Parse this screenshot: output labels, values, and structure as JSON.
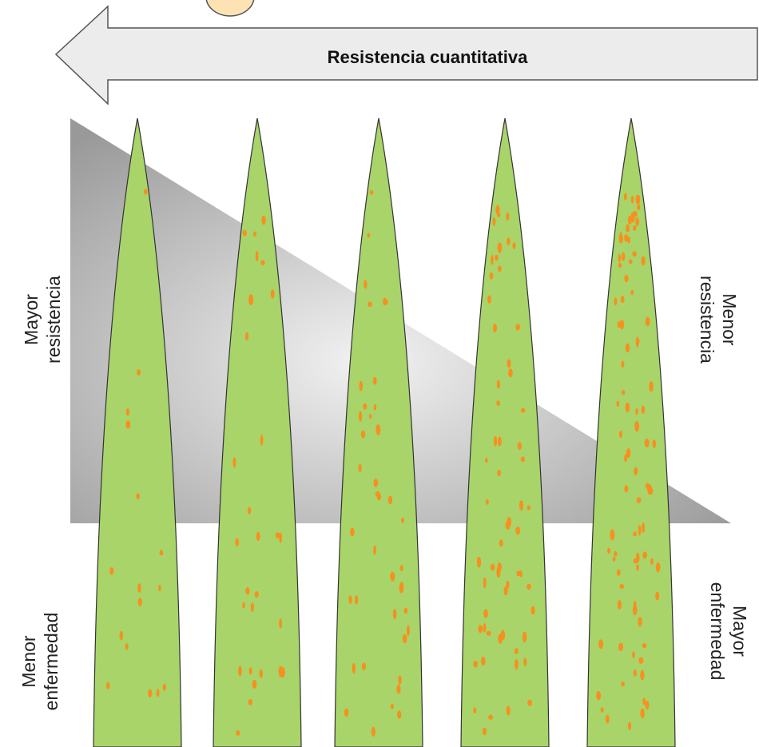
{
  "arrow": {
    "label": "Resistencia cuantitativa"
  },
  "labels": {
    "left_top": {
      "lines": [
        "Mayor",
        "resistencia"
      ]
    },
    "right_top": {
      "lines": [
        "Menor",
        "resistencia"
      ]
    },
    "left_bottom": {
      "lines": [
        "Menor",
        "enfermedad"
      ]
    },
    "right_bottom": {
      "lines": [
        "Mayor",
        "enfermedad"
      ]
    }
  }
}
